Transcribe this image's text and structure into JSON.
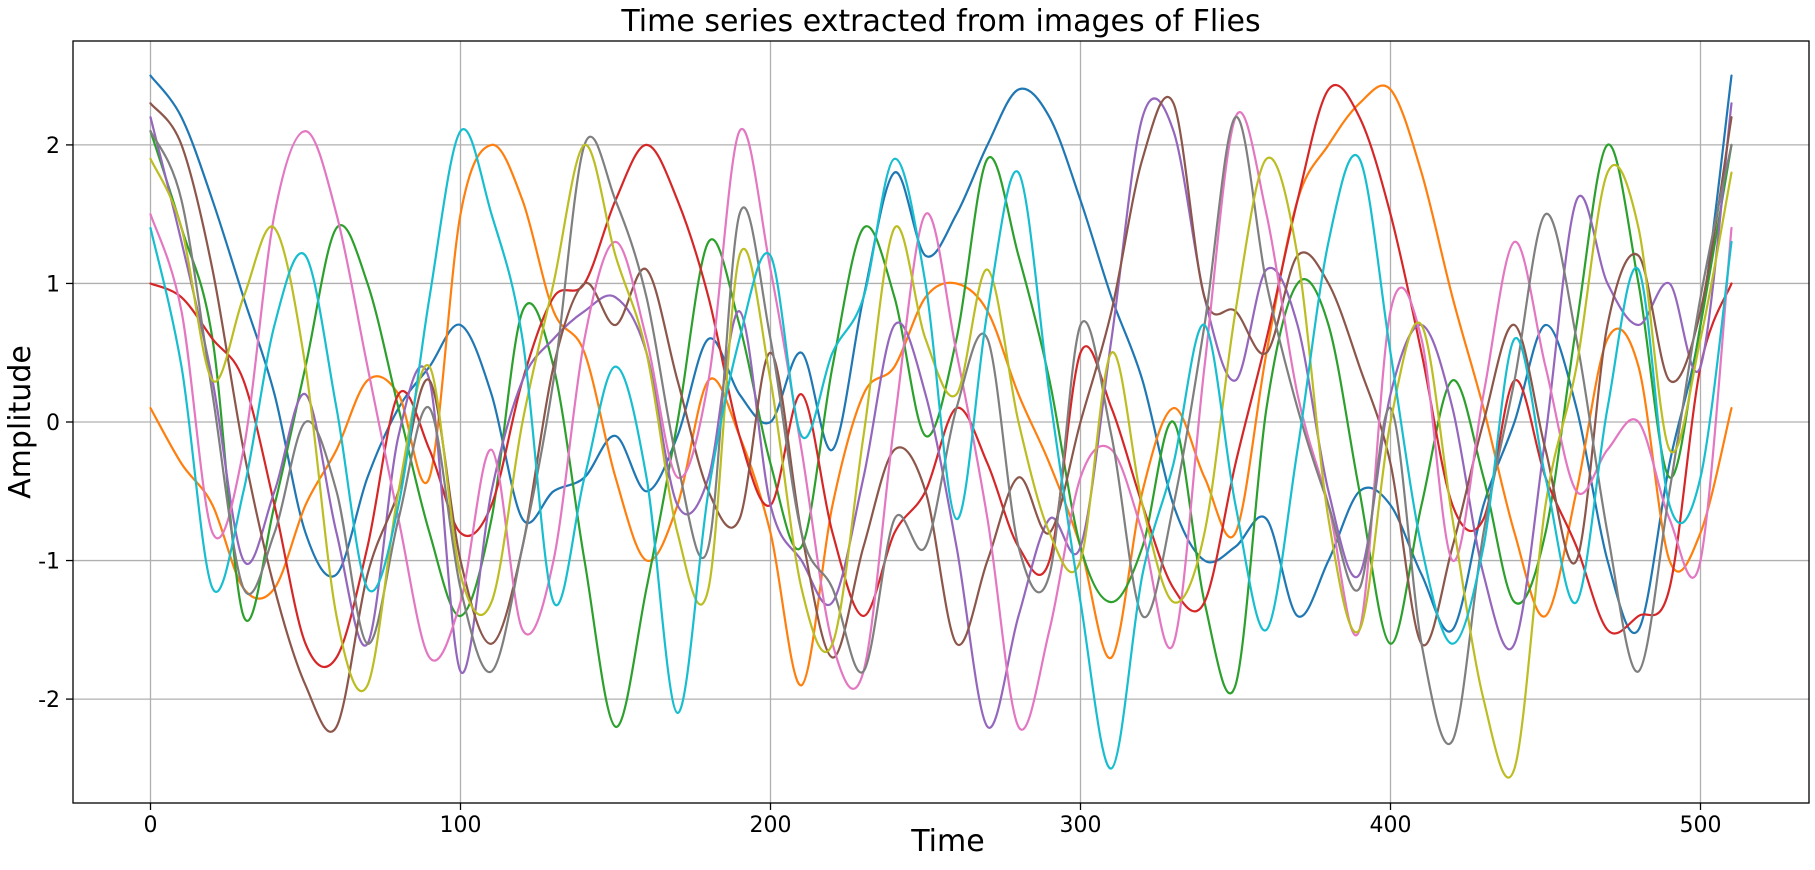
{
  "chart_data": {
    "type": "line",
    "title": "Time series extracted from images of Flies",
    "xlabel": "Time",
    "ylabel": "Amplitude",
    "xlim": [
      -25,
      535
    ],
    "ylim": [
      -2.75,
      2.75
    ],
    "x_ticks": [
      0,
      100,
      200,
      300,
      400,
      500
    ],
    "y_ticks": [
      -2,
      -1,
      0,
      1,
      2
    ],
    "x_tick_labels": [
      "0",
      "100",
      "200",
      "300",
      "400",
      "500"
    ],
    "y_tick_labels": [
      "-2",
      "-1",
      "0",
      "1",
      "2"
    ],
    "grid": true,
    "legend": "none",
    "x": [
      0,
      10,
      20,
      30,
      40,
      50,
      60,
      70,
      80,
      90,
      100,
      110,
      120,
      130,
      140,
      150,
      160,
      170,
      180,
      190,
      200,
      210,
      220,
      230,
      240,
      250,
      260,
      270,
      280,
      290,
      300,
      310,
      320,
      330,
      340,
      350,
      360,
      370,
      380,
      390,
      400,
      410,
      420,
      430,
      440,
      450,
      460,
      470,
      480,
      490,
      500,
      510
    ],
    "series": [
      {
        "color": "#1f77b4",
        "values": [
          2.5,
          2.2,
          1.6,
          0.9,
          0.2,
          -0.8,
          -1.1,
          -0.4,
          0.1,
          0.4,
          0.7,
          0.2,
          -0.7,
          -0.5,
          -0.4,
          -0.1,
          -0.5,
          -0.1,
          0.6,
          0.2,
          0.0,
          0.5,
          -0.2,
          0.9,
          1.8,
          1.2,
          1.5,
          2.0,
          2.4,
          2.2,
          1.6,
          0.9,
          0.3,
          -0.6,
          -1.0,
          -0.9,
          -0.7,
          -1.4,
          -1.0,
          -0.5,
          -0.6,
          -1.1,
          -1.5,
          -0.6,
          0.0,
          0.7,
          0.1,
          -1.0,
          -1.5,
          -0.3,
          0.7,
          2.5
        ]
      },
      {
        "color": "#ff7f0e",
        "values": [
          0.1,
          -0.3,
          -0.6,
          -1.2,
          -1.2,
          -0.6,
          -0.2,
          0.3,
          0.2,
          -0.4,
          1.5,
          2.0,
          1.6,
          0.8,
          0.5,
          -0.4,
          -1.0,
          -0.6,
          0.3,
          -0.1,
          -0.8,
          -1.9,
          -0.6,
          0.2,
          0.4,
          0.9,
          1.0,
          0.8,
          0.2,
          -0.3,
          -0.9,
          -1.7,
          -0.5,
          0.1,
          -0.4,
          -0.8,
          0.5,
          1.6,
          2.0,
          2.3,
          2.4,
          1.8,
          0.9,
          0.1,
          -0.8,
          -1.4,
          -0.5,
          0.6,
          0.4,
          -1.0,
          -0.8,
          0.1
        ]
      },
      {
        "color": "#2ca02c",
        "values": [
          2.1,
          1.4,
          0.6,
          -1.4,
          -0.6,
          0.4,
          1.4,
          1.0,
          0.1,
          -0.8,
          -1.4,
          -0.7,
          0.8,
          0.4,
          -1.0,
          -2.2,
          -1.2,
          0.0,
          1.3,
          0.7,
          -0.3,
          -0.9,
          0.4,
          1.4,
          0.9,
          -0.1,
          0.6,
          1.9,
          1.2,
          0.3,
          -0.9,
          -1.3,
          -0.9,
          0.0,
          -1.3,
          -1.9,
          0.1,
          1.0,
          0.7,
          -0.5,
          -1.6,
          -0.6,
          0.3,
          -0.4,
          -1.3,
          -0.8,
          0.7,
          2.0,
          1.0,
          -0.4,
          0.7,
          2.0
        ]
      },
      {
        "color": "#d62728",
        "values": [
          1.0,
          0.9,
          0.6,
          0.3,
          -0.6,
          -1.6,
          -1.7,
          -0.9,
          0.2,
          -0.2,
          -0.8,
          -0.6,
          0.3,
          0.9,
          1.0,
          1.6,
          2.0,
          1.6,
          0.9,
          -0.1,
          -0.6,
          0.2,
          -0.8,
          -1.4,
          -0.8,
          -0.5,
          0.1,
          -0.3,
          -0.9,
          -1.0,
          0.5,
          0.1,
          -0.6,
          -1.2,
          -1.3,
          -0.3,
          0.6,
          1.6,
          2.4,
          2.2,
          1.5,
          0.5,
          -0.6,
          -0.7,
          0.3,
          -0.4,
          -0.9,
          -1.5,
          -1.4,
          -1.2,
          0.4,
          1.0
        ]
      },
      {
        "color": "#9467bd",
        "values": [
          2.2,
          1.3,
          0.3,
          -1.0,
          -0.5,
          0.2,
          -0.8,
          -1.6,
          -0.1,
          0.3,
          -1.8,
          -0.5,
          0.3,
          0.6,
          0.8,
          0.9,
          0.5,
          -0.6,
          -0.4,
          0.8,
          -0.6,
          -1.0,
          -1.3,
          -0.4,
          0.7,
          0.2,
          -0.9,
          -2.2,
          -1.4,
          -0.7,
          -0.9,
          0.6,
          2.2,
          2.1,
          0.9,
          0.3,
          1.1,
          0.7,
          -0.5,
          -1.1,
          0.2,
          0.7,
          0.1,
          -1.1,
          -1.6,
          -0.1,
          1.6,
          1.0,
          0.7,
          1.0,
          0.4,
          2.3
        ]
      },
      {
        "color": "#8c564b",
        "values": [
          2.3,
          2.0,
          1.1,
          -0.2,
          -1.2,
          -1.9,
          -2.2,
          -1.1,
          -0.5,
          0.3,
          -1.0,
          -1.6,
          -0.9,
          0.4,
          1.0,
          0.7,
          1.1,
          0.3,
          -0.5,
          -0.7,
          0.5,
          -0.8,
          -1.7,
          -0.9,
          -0.2,
          -0.5,
          -1.6,
          -1.0,
          -0.4,
          -0.8,
          0.0,
          0.8,
          1.9,
          2.3,
          0.9,
          0.8,
          0.5,
          1.2,
          1.0,
          0.4,
          -0.3,
          -1.6,
          -0.9,
          0.0,
          0.7,
          -0.2,
          -1.0,
          0.7,
          1.2,
          0.3,
          0.8,
          2.2
        ]
      },
      {
        "color": "#e377c2",
        "values": [
          1.5,
          0.8,
          -0.8,
          -0.2,
          1.5,
          2.1,
          1.5,
          0.4,
          -0.7,
          -1.7,
          -1.3,
          -0.2,
          -1.5,
          -1.0,
          0.6,
          1.3,
          0.6,
          -0.4,
          0.3,
          2.1,
          1.1,
          -0.2,
          -1.6,
          -1.8,
          0.0,
          1.5,
          0.5,
          -0.7,
          -2.2,
          -1.5,
          -0.4,
          -0.2,
          -0.8,
          -1.6,
          0.4,
          2.2,
          1.5,
          0.2,
          -0.6,
          -1.5,
          0.8,
          0.6,
          -1.0,
          0.2,
          1.3,
          0.4,
          -0.5,
          -0.2,
          0.0,
          -0.7,
          -1.0,
          1.4
        ]
      },
      {
        "color": "#7f7f7f",
        "values": [
          2.1,
          1.6,
          0.2,
          -1.2,
          -0.8,
          0.0,
          -0.5,
          -1.6,
          -0.7,
          0.1,
          -1.2,
          -1.8,
          -0.9,
          0.3,
          2.0,
          1.6,
          0.9,
          -0.3,
          -0.9,
          1.5,
          0.6,
          -0.8,
          -1.2,
          -1.8,
          -0.7,
          -0.9,
          0.1,
          0.6,
          -0.9,
          -1.1,
          0.7,
          -0.1,
          -1.4,
          -0.6,
          0.7,
          2.2,
          1.0,
          0.1,
          -0.6,
          -1.2,
          0.1,
          -1.6,
          -2.3,
          -0.8,
          0.3,
          1.5,
          0.6,
          -0.8,
          -1.8,
          -0.5,
          0.9,
          2.0
        ]
      },
      {
        "color": "#bcbd22",
        "values": [
          1.9,
          1.4,
          0.3,
          0.9,
          1.4,
          0.4,
          -1.4,
          -1.9,
          -0.5,
          0.4,
          -1.1,
          -1.3,
          0.0,
          1.0,
          2.0,
          1.2,
          0.5,
          -0.8,
          -1.2,
          1.2,
          0.3,
          -1.2,
          -1.6,
          -0.1,
          1.4,
          0.6,
          0.2,
          1.1,
          0.0,
          -0.8,
          -1.0,
          0.5,
          -0.6,
          -1.3,
          -0.8,
          0.8,
          1.9,
          1.2,
          -0.7,
          -1.5,
          0.0,
          0.7,
          -0.7,
          -2.0,
          -2.5,
          -0.6,
          0.4,
          1.8,
          1.4,
          -0.2,
          0.6,
          1.8
        ]
      },
      {
        "color": "#17becf",
        "values": [
          1.4,
          0.4,
          -1.2,
          -0.5,
          0.7,
          1.2,
          0.1,
          -1.2,
          -0.6,
          0.9,
          2.1,
          1.5,
          0.6,
          -1.3,
          -0.4,
          0.4,
          -0.4,
          -2.1,
          -0.5,
          0.6,
          1.2,
          -0.1,
          0.5,
          0.9,
          1.9,
          1.0,
          -0.7,
          0.8,
          1.8,
          0.2,
          -1.3,
          -2.5,
          -1.1,
          -0.3,
          0.7,
          -0.6,
          -1.5,
          -0.2,
          1.3,
          1.9,
          0.5,
          -0.9,
          -1.6,
          -0.9,
          0.6,
          -0.4,
          -1.3,
          0.1,
          1.1,
          -0.6,
          -0.4,
          1.3
        ]
      }
    ]
  }
}
